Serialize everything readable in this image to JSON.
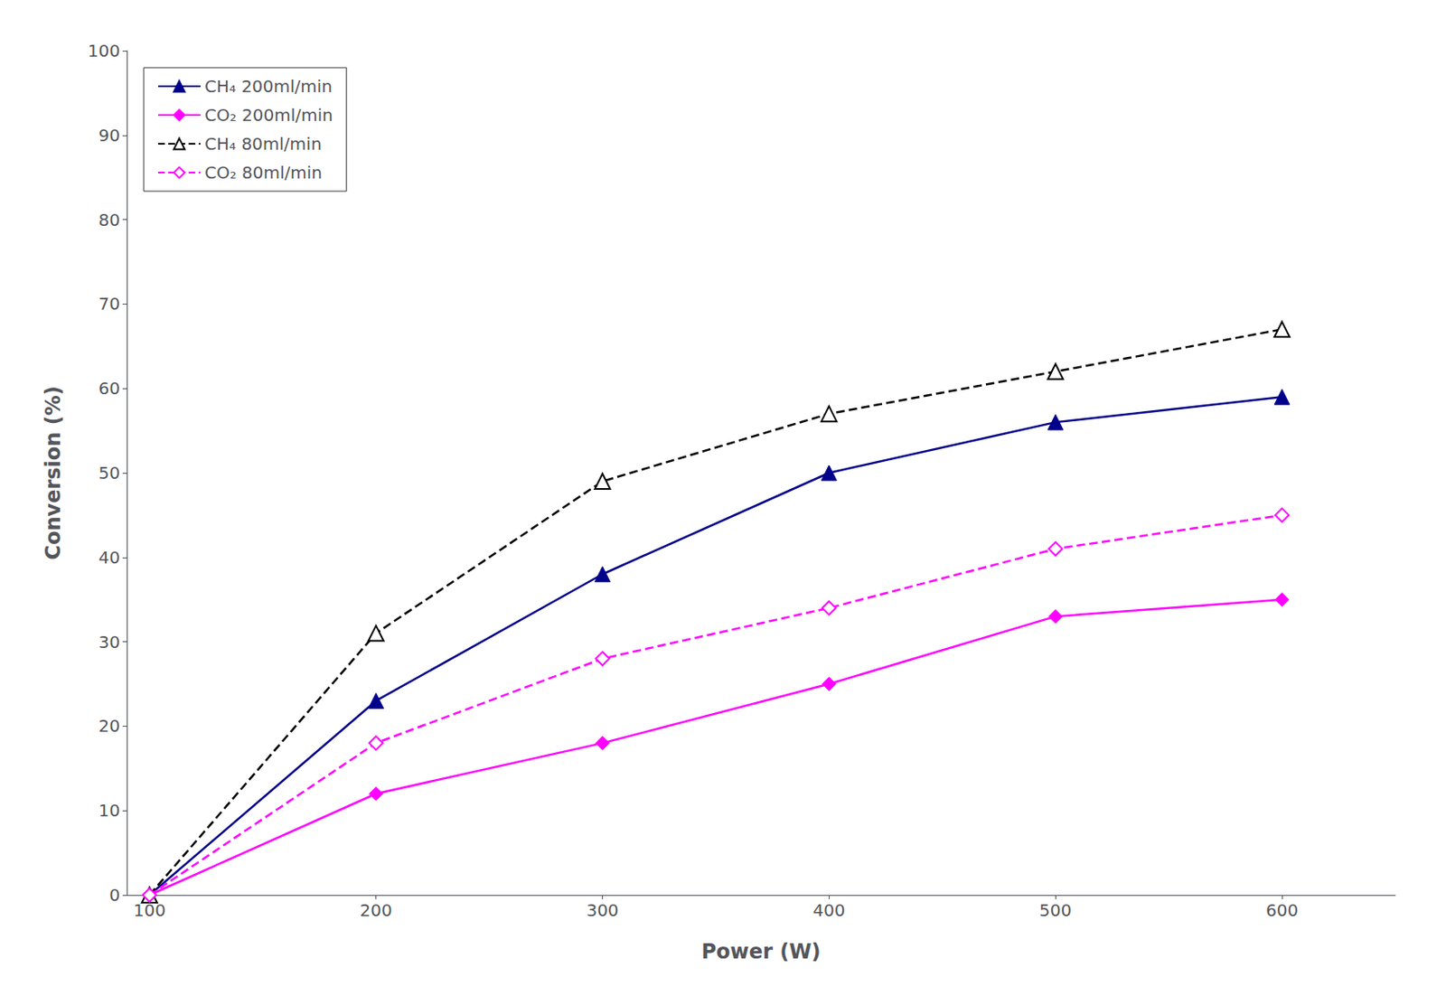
{
  "chart_data": {
    "type": "line",
    "x_label": "Power (W)",
    "y_label": "Conversion (%)",
    "x": [
      100,
      200,
      300,
      400,
      500,
      600
    ],
    "series": [
      {
        "name": "CH₄ 200ml/min",
        "color": "#00008B",
        "marker": "triangle",
        "line_style": "solid",
        "values": [
          0,
          23,
          38,
          50,
          56,
          59
        ]
      },
      {
        "name": "CO₂ 200ml/min",
        "color": "#FF00FF",
        "marker": "diamond",
        "line_style": "solid",
        "values": [
          0,
          12,
          18,
          25,
          33,
          35
        ]
      },
      {
        "name": "CH₄ 80ml/min",
        "color": "#000000",
        "marker": "triangle-open",
        "line_style": "dashed",
        "values": [
          0,
          31,
          49,
          57,
          62,
          67
        ]
      },
      {
        "name": "CO₂ 80ml/min",
        "color": "#FF00FF",
        "marker": "diamond-open",
        "line_style": "dashed",
        "values": [
          0,
          18,
          28,
          34,
          41,
          45
        ]
      }
    ],
    "xlim": [
      90,
      650
    ],
    "ylim": [
      0,
      100
    ],
    "xticks": [
      100,
      200,
      300,
      400,
      500,
      600
    ],
    "yticks": [
      0,
      10,
      20,
      30,
      40,
      50,
      60,
      70,
      80,
      90,
      100
    ],
    "grid": false,
    "legend": "upper left"
  }
}
